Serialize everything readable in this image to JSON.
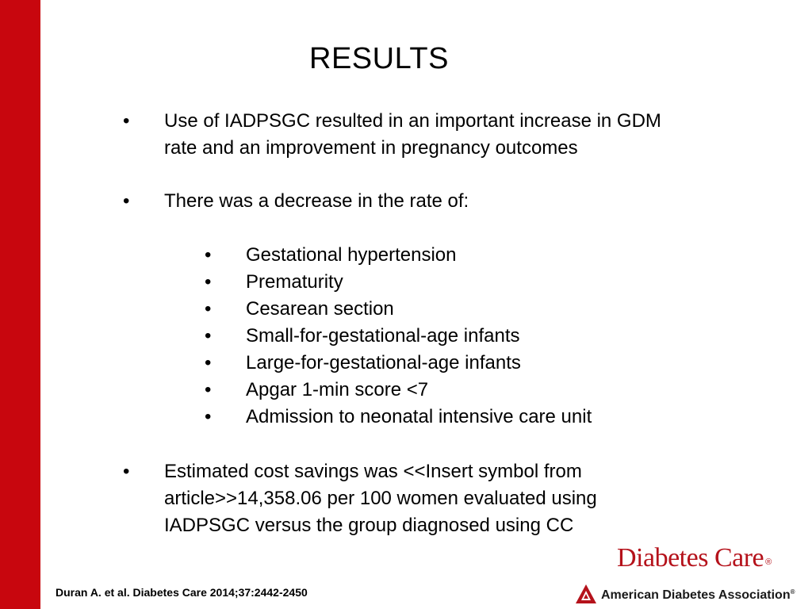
{
  "slide": {
    "title": "RESULTS",
    "bullets": [
      {
        "lines": [
          "Use of IADPSGC resulted in an important increase in GDM",
          "rate and an improvement in pregnancy outcomes"
        ]
      },
      {
        "lines": [
          "There was a decrease in the rate of:"
        ]
      },
      {
        "lines": [
          "Estimated cost savings was <<Insert symbol from",
          "article>>14,358.06 per 100 women evaluated using",
          "IADPSGC versus the group diagnosed using CC"
        ]
      }
    ],
    "sub_bullets": [
      "Gestational hypertension",
      "Prematurity",
      "Cesarean section",
      "Small-for-gestational-age infants",
      "Large-for-gestational-age infants",
      "Apgar 1-min score <7",
      "Admission to neonatal intensive care unit"
    ],
    "bullet_symbol": "•",
    "citation": "Duran A. et al. Diabetes Care 2014;37:2442-2450"
  },
  "logos": {
    "journal": "Diabetes Care",
    "journal_mark": "®",
    "association": "American Diabetes Association",
    "association_mark": "®"
  },
  "colors": {
    "accent_red": "#c8060e",
    "logo_red": "#b5121b",
    "text": "#000000"
  }
}
